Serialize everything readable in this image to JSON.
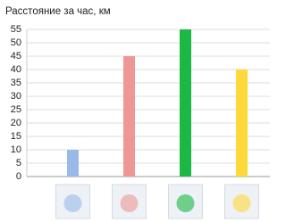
{
  "chart_data": {
    "type": "bar",
    "title": "Расстояние за час, км",
    "categories": [
      null,
      null,
      null,
      null
    ],
    "values": [
      10,
      45,
      55,
      40
    ],
    "colors": [
      "#9ab9ea",
      "#ef9797",
      "#1db745",
      "#ffd93b"
    ],
    "ylim": [
      0,
      55
    ],
    "yticks": [
      0,
      5,
      10,
      15,
      20,
      25,
      30,
      35,
      40,
      45,
      50,
      55
    ],
    "grid": true
  }
}
